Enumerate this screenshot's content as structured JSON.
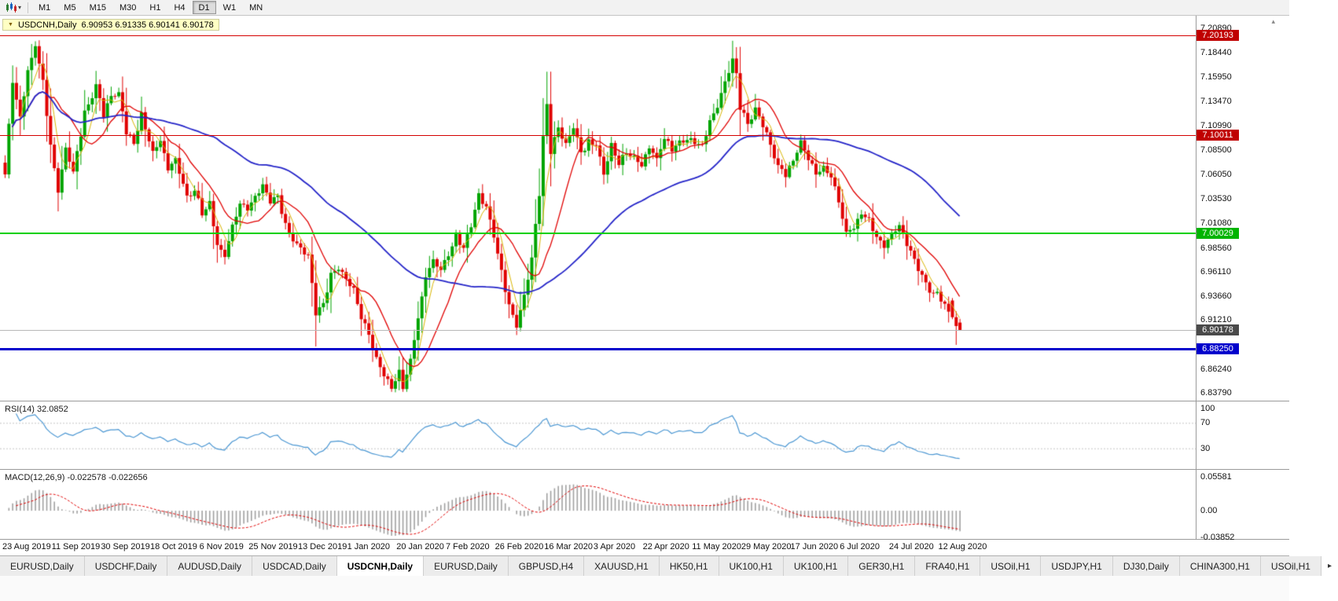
{
  "icons": {
    "caret_down": "▾",
    "menu_triangle": "▼",
    "tab_scroll_right": "▸",
    "scroll_marker": "▴"
  },
  "toolbar": {
    "timeframes": [
      {
        "label": "M1",
        "active": false
      },
      {
        "label": "M5",
        "active": false
      },
      {
        "label": "M15",
        "active": false
      },
      {
        "label": "M30",
        "active": false
      },
      {
        "label": "H1",
        "active": false
      },
      {
        "label": "H4",
        "active": false
      },
      {
        "label": "D1",
        "active": true
      },
      {
        "label": "W1",
        "active": false
      },
      {
        "label": "MN",
        "active": false
      }
    ]
  },
  "chart": {
    "title_symbol": "USDCNH,Daily",
    "title_ohlc": "6.90953 6.91335 6.90141 6.90178"
  },
  "main_axis_ticks": [
    "7.20890",
    "7.18440",
    "7.15950",
    "7.13470",
    "7.10990",
    "7.08500",
    "7.06050",
    "7.03530",
    "7.01080",
    "6.98560",
    "6.96110",
    "6.93660",
    "6.91210",
    "6.86240",
    "6.83790"
  ],
  "hlines": [
    {
      "label": "7.20193",
      "value": 7.20193,
      "line_color": "#d40000",
      "chip_color": "#c00000",
      "thickness": 1
    },
    {
      "label": "7.10011",
      "value": 7.10011,
      "line_color": "#d40000",
      "chip_color": "#c00000",
      "thickness": 1
    },
    {
      "label": "7.00029",
      "value": 7.00029,
      "line_color": "#00d000",
      "chip_color": "#00b400",
      "thickness": 2
    },
    {
      "label": "6.90178",
      "value": 6.90178,
      "line_color": "#b8b8b8",
      "chip_color": "#4a4a4a",
      "thickness": 1
    },
    {
      "label": "6.88250",
      "value": 6.8825,
      "line_color": "#0000cc",
      "chip_color": "#0000cc",
      "thickness": 3
    }
  ],
  "rsi": {
    "label": "RSI(14) 32.0852",
    "ticks": [
      "100",
      "70",
      "30"
    ]
  },
  "macd": {
    "label": "MACD(12,26,9) -0.022578 -0.022656",
    "ticks": [
      "0.05581",
      "0.00",
      "-0.03852"
    ]
  },
  "dates": [
    "23 Aug 2019",
    "11 Sep 2019",
    "30 Sep 2019",
    "18 Oct 2019",
    "6 Nov 2019",
    "25 Nov 2019",
    "13 Dec 2019",
    "1 Jan 2020",
    "20 Jan 2020",
    "7 Feb 2020",
    "26 Feb 2020",
    "16 Mar 2020",
    "3 Apr 2020",
    "22 Apr 2020",
    "11 May 2020",
    "29 May 2020",
    "17 Jun 2020",
    "6 Jul 2020",
    "24 Jul 2020",
    "12 Aug 2020"
  ],
  "tabs": {
    "items": [
      {
        "label": "EURUSD,Daily",
        "active": false
      },
      {
        "label": "USDCHF,Daily",
        "active": false
      },
      {
        "label": "AUDUSD,Daily",
        "active": false
      },
      {
        "label": "USDCAD,Daily",
        "active": false
      },
      {
        "label": "USDCNH,Daily",
        "active": true
      },
      {
        "label": "EURUSD,Daily",
        "active": false
      },
      {
        "label": "GBPUSD,H4",
        "active": false
      },
      {
        "label": "XAUUSD,H1",
        "active": false
      },
      {
        "label": "HK50,H1",
        "active": false
      },
      {
        "label": "UK100,H1",
        "active": false
      },
      {
        "label": "UK100,H1",
        "active": false
      },
      {
        "label": "GER30,H1",
        "active": false
      },
      {
        "label": "FRA40,H1",
        "active": false
      },
      {
        "label": "USOil,H1",
        "active": false
      },
      {
        "label": "USDJPY,H1",
        "active": false
      },
      {
        "label": "DJ30,Daily",
        "active": false
      },
      {
        "label": "CHINA300,H1",
        "active": false
      },
      {
        "label": "USOil,H1",
        "active": false
      }
    ]
  },
  "chart_data": {
    "type": "candlestick+indicators",
    "symbol": "USDCNH",
    "timeframe": "Daily",
    "main": {
      "ylim": [
        6.83,
        7.222
      ],
      "num_candles": 253,
      "candle_spacing": 4.82,
      "plot_left": 6,
      "plot_right": 1521,
      "up_color": "#00a400",
      "down_color": "#e00000",
      "close_anchors": [
        [
          0,
          7.06
        ],
        [
          1,
          7.11
        ],
        [
          2,
          7.155
        ],
        [
          4,
          7.12
        ],
        [
          6,
          7.165
        ],
        [
          8,
          7.19
        ],
        [
          10,
          7.155
        ],
        [
          12,
          7.09
        ],
        [
          14,
          7.045
        ],
        [
          16,
          7.085
        ],
        [
          18,
          7.06
        ],
        [
          21,
          7.125
        ],
        [
          24,
          7.15
        ],
        [
          26,
          7.12
        ],
        [
          28,
          7.14
        ],
        [
          30,
          7.145
        ],
        [
          32,
          7.105
        ],
        [
          34,
          7.09
        ],
        [
          36,
          7.12
        ],
        [
          39,
          7.085
        ],
        [
          41,
          7.095
        ],
        [
          43,
          7.065
        ],
        [
          45,
          7.075
        ],
        [
          48,
          7.04
        ],
        [
          50,
          7.045
        ],
        [
          52,
          7.02
        ],
        [
          54,
          7.03
        ],
        [
          56,
          6.99
        ],
        [
          58,
          6.978
        ],
        [
          60,
          7.005
        ],
        [
          62,
          7.03
        ],
        [
          64,
          7.025
        ],
        [
          66,
          7.04
        ],
        [
          68,
          7.05
        ],
        [
          70,
          7.03
        ],
        [
          72,
          7.038
        ],
        [
          74,
          7.01
        ],
        [
          76,
          6.995
        ],
        [
          78,
          6.985
        ],
        [
          80,
          6.975
        ],
        [
          82,
          6.92
        ],
        [
          84,
          6.93
        ],
        [
          86,
          6.958
        ],
        [
          88,
          6.962
        ],
        [
          90,
          6.955
        ],
        [
          92,
          6.945
        ],
        [
          94,
          6.915
        ],
        [
          96,
          6.895
        ],
        [
          98,
          6.87
        ],
        [
          100,
          6.858
        ],
        [
          102,
          6.845
        ],
        [
          104,
          6.858
        ],
        [
          105,
          6.842
        ],
        [
          107,
          6.87
        ],
        [
          109,
          6.915
        ],
        [
          111,
          6.958
        ],
        [
          113,
          6.972
        ],
        [
          115,
          6.962
        ],
        [
          117,
          6.98
        ],
        [
          119,
          7.0
        ],
        [
          121,
          6.985
        ],
        [
          123,
          7.008
        ],
        [
          125,
          7.038
        ],
        [
          127,
          7.028
        ],
        [
          129,
          7.0
        ],
        [
          131,
          6.96
        ],
        [
          133,
          6.925
        ],
        [
          135,
          6.908
        ],
        [
          137,
          6.938
        ],
        [
          139,
          6.975
        ],
        [
          141,
          7.04
        ],
        [
          142,
          7.095
        ],
        [
          143,
          7.13
        ],
        [
          144,
          7.085
        ],
        [
          146,
          7.11
        ],
        [
          148,
          7.09
        ],
        [
          150,
          7.108
        ],
        [
          152,
          7.082
        ],
        [
          154,
          7.095
        ],
        [
          156,
          7.092
        ],
        [
          158,
          7.06
        ],
        [
          160,
          7.088
        ],
        [
          162,
          7.072
        ],
        [
          164,
          7.085
        ],
        [
          166,
          7.078
        ],
        [
          168,
          7.068
        ],
        [
          170,
          7.09
        ],
        [
          172,
          7.078
        ],
        [
          174,
          7.098
        ],
        [
          176,
          7.085
        ],
        [
          178,
          7.092
        ],
        [
          180,
          7.098
        ],
        [
          182,
          7.095
        ],
        [
          184,
          7.088
        ],
        [
          186,
          7.112
        ],
        [
          188,
          7.132
        ],
        [
          190,
          7.155
        ],
        [
          192,
          7.178
        ],
        [
          193,
          7.16
        ],
        [
          194,
          7.128
        ],
        [
          196,
          7.112
        ],
        [
          198,
          7.128
        ],
        [
          200,
          7.112
        ],
        [
          202,
          7.088
        ],
        [
          204,
          7.068
        ],
        [
          206,
          7.062
        ],
        [
          208,
          7.075
        ],
        [
          210,
          7.092
        ],
        [
          212,
          7.075
        ],
        [
          214,
          7.062
        ],
        [
          216,
          7.07
        ],
        [
          218,
          7.058
        ],
        [
          220,
          7.03
        ],
        [
          222,
          7.0
        ],
        [
          224,
          7.008
        ],
        [
          226,
          7.022
        ],
        [
          228,
          7.012
        ],
        [
          230,
          6.995
        ],
        [
          232,
          6.988
        ],
        [
          234,
          7.002
        ],
        [
          236,
          7.01
        ],
        [
          238,
          6.988
        ],
        [
          240,
          6.972
        ],
        [
          242,
          6.958
        ],
        [
          244,
          6.942
        ],
        [
          246,
          6.938
        ],
        [
          248,
          6.925
        ],
        [
          250,
          6.915
        ],
        [
          252,
          6.902
        ]
      ],
      "overrides": {
        "8": {
          "h": 7.196
        },
        "103": {
          "l": 6.8385
        },
        "143": {
          "h": 7.165
        },
        "192": {
          "h": 7.1965
        },
        "250": {
          "o": 6.932,
          "h": 6.9345,
          "l": 6.913,
          "c": 6.915
        },
        "251": {
          "o": 6.915,
          "h": 6.921,
          "l": 6.8868,
          "c": 6.906
        },
        "252": {
          "o": 6.90953,
          "h": 6.91335,
          "l": 6.90141,
          "c": 6.90178
        }
      },
      "ma": [
        {
          "period": 5,
          "color": "#d8b400",
          "width": 1
        },
        {
          "period": 13,
          "color": "#e00000",
          "width": 1.3
        },
        {
          "period": 55,
          "color": "#2424c8",
          "width": 1.8
        }
      ]
    },
    "rsi": {
      "period": 14,
      "last": 32.0852,
      "levels": [
        70,
        30
      ],
      "ylim": [
        0,
        100
      ],
      "color": "#4a96d2"
    },
    "macd": {
      "fast": 12,
      "slow": 26,
      "signal": 9,
      "last_main": -0.022578,
      "last_signal": -0.022656,
      "ylim": [
        -0.03852,
        0.05581
      ],
      "hist_color": "#a0a0a0",
      "signal_color": "#e00000"
    }
  }
}
